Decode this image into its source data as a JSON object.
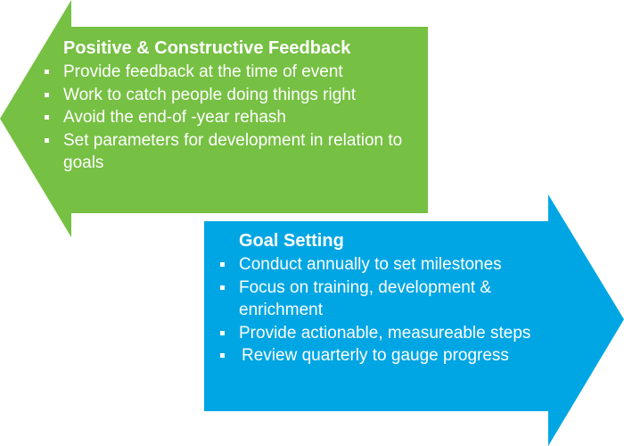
{
  "colors": {
    "feedback_arrow": "#76c043",
    "goal_arrow": "#00a6e3",
    "text": "#ffffff"
  },
  "feedback": {
    "direction": "left",
    "title": "Positive & Constructive Feedback",
    "items": [
      "Provide feedback at the time of event",
      "Work to catch people doing things right",
      "Avoid the end-of -year rehash",
      "Set parameters for development in relation to goals"
    ]
  },
  "goal_setting": {
    "direction": "right",
    "title": "Goal Setting",
    "items": [
      "Conduct annually to set milestones",
      "Focus on training, development & enrichment",
      "Provide actionable, measureable steps",
      "Review quarterly to gauge progress"
    ]
  }
}
